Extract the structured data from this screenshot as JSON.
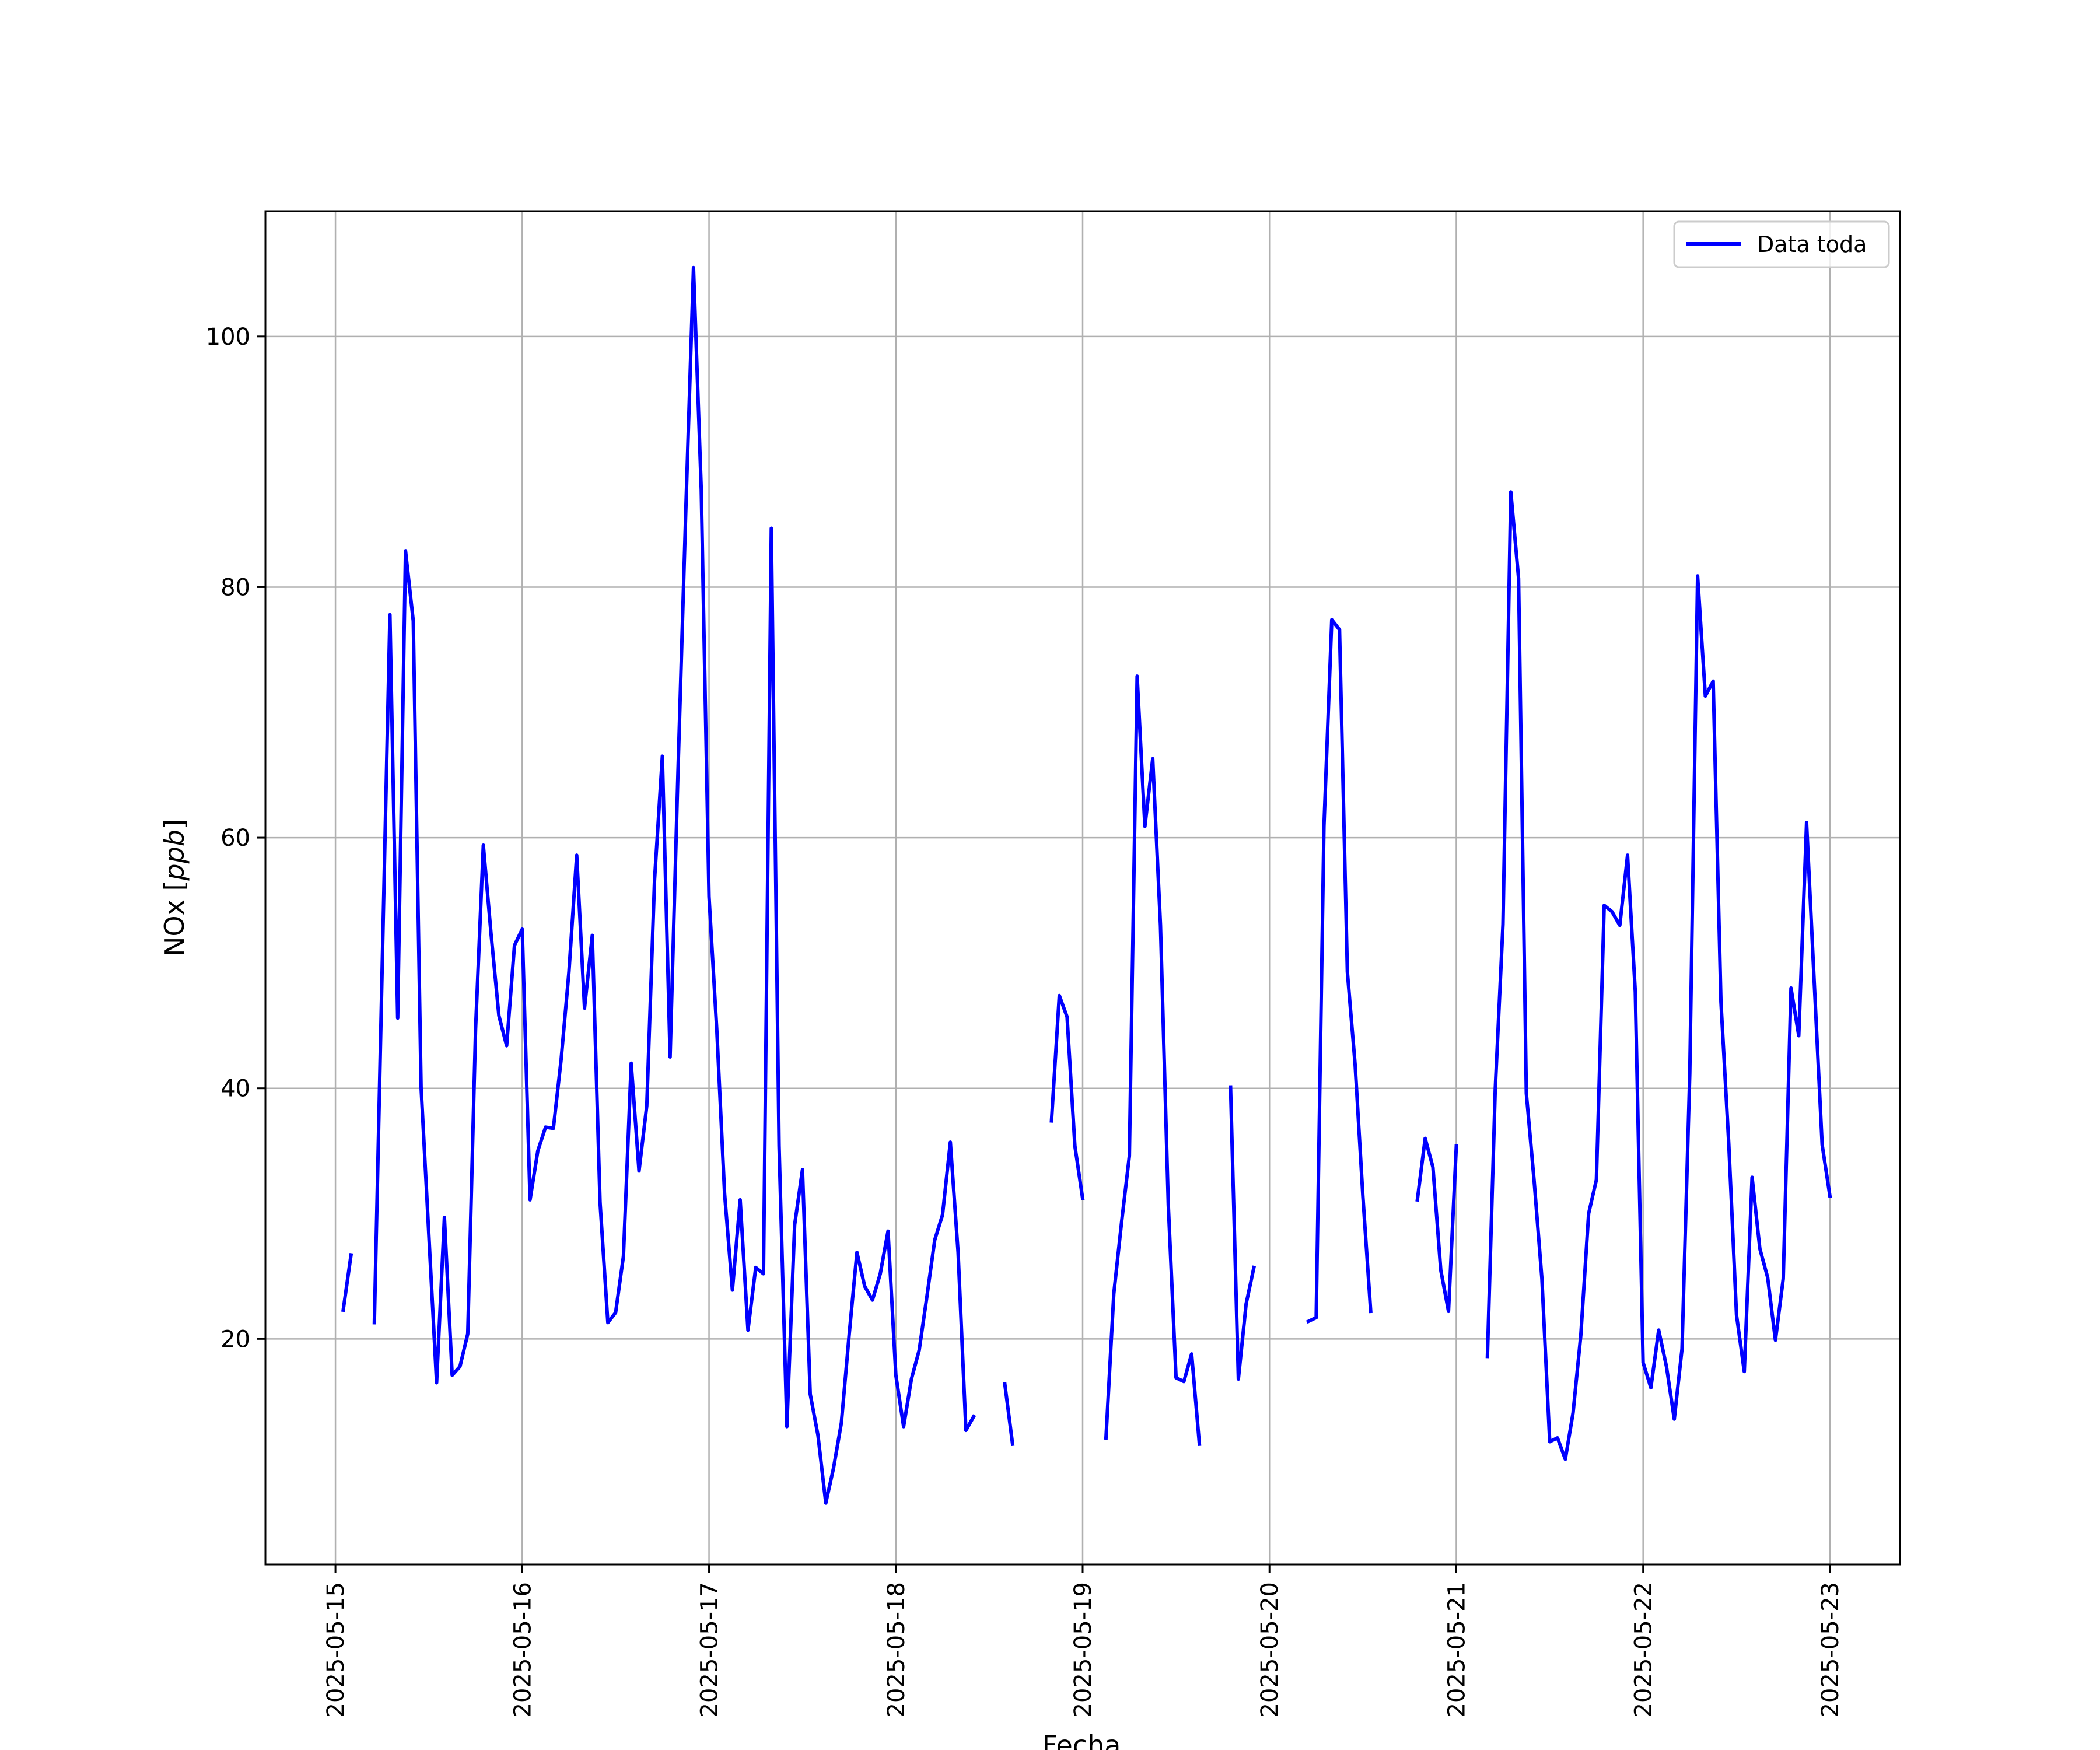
{
  "chart_data": {
    "type": "line",
    "title": "",
    "xlabel": "Fecha",
    "ylabel": "NOx [ppb]",
    "ylabel_parts": {
      "base": "NOx ",
      "unit": "ppb"
    },
    "xlim": [
      "2025-05-14 15:00",
      "2025-05-23 09:00"
    ],
    "ylim": [
      2,
      110
    ],
    "x_ticks": [
      "2025-05-15",
      "2025-05-16",
      "2025-05-17",
      "2025-05-18",
      "2025-05-19",
      "2025-05-20",
      "2025-05-21",
      "2025-05-22",
      "2025-05-23"
    ],
    "y_ticks": [
      20,
      40,
      60,
      80,
      100
    ],
    "grid": true,
    "legend_position": "top-right",
    "series": [
      {
        "name": "Data toda",
        "color": "#0000ff",
        "segments": [
          [
            [
              "2025-05-15 01:00",
              22.3
            ],
            [
              "2025-05-15 02:00",
              26.7
            ]
          ],
          [
            [
              "2025-05-15 05:00",
              21.3
            ],
            [
              "2025-05-15 07:00",
              77.8
            ],
            [
              "2025-05-15 08:00",
              45.6
            ],
            [
              "2025-05-15 09:00",
              82.9
            ],
            [
              "2025-05-15 10:00",
              77.3
            ],
            [
              "2025-05-15 11:00",
              40.1
            ],
            [
              "2025-05-15 13:00",
              16.5
            ],
            [
              "2025-05-15 14:00",
              29.7
            ],
            [
              "2025-05-15 15:00",
              17.1
            ],
            [
              "2025-05-15 16:00",
              17.8
            ],
            [
              "2025-05-15 17:00",
              20.4
            ],
            [
              "2025-05-15 18:00",
              44.7
            ],
            [
              "2025-05-15 19:00",
              59.4
            ],
            [
              "2025-05-15 20:00",
              52.3
            ],
            [
              "2025-05-15 21:00",
              45.8
            ],
            [
              "2025-05-15 22:00",
              43.4
            ],
            [
              "2025-05-15 23:00",
              51.4
            ],
            [
              "2025-05-16 00:00",
              52.7
            ],
            [
              "2025-05-16 01:00",
              31.1
            ],
            [
              "2025-05-16 02:00",
              35.0
            ],
            [
              "2025-05-16 03:00",
              36.9
            ],
            [
              "2025-05-16 04:00",
              36.8
            ],
            [
              "2025-05-16 05:00",
              42.3
            ],
            [
              "2025-05-16 06:00",
              49.3
            ],
            [
              "2025-05-16 07:00",
              58.6
            ],
            [
              "2025-05-16 08:00",
              46.4
            ],
            [
              "2025-05-16 09:00",
              52.2
            ],
            [
              "2025-05-16 10:00",
              30.9
            ],
            [
              "2025-05-16 11:00",
              21.3
            ],
            [
              "2025-05-16 12:00",
              22.1
            ],
            [
              "2025-05-16 13:00",
              26.6
            ],
            [
              "2025-05-16 14:00",
              42.0
            ],
            [
              "2025-05-16 15:00",
              33.4
            ],
            [
              "2025-05-16 16:00",
              38.6
            ],
            [
              "2025-05-16 17:00",
              56.6
            ],
            [
              "2025-05-16 18:00",
              66.5
            ],
            [
              "2025-05-16 19:00",
              42.5
            ],
            [
              "2025-05-16 20:00",
              65.1
            ],
            [
              "2025-05-16 21:00",
              85.8
            ],
            [
              "2025-05-16 22:00",
              105.5
            ],
            [
              "2025-05-16 23:00",
              87.8
            ],
            [
              "2025-05-17 00:00",
              55.3
            ],
            [
              "2025-05-17 01:00",
              44.6
            ],
            [
              "2025-05-17 02:00",
              31.6
            ],
            [
              "2025-05-17 03:00",
              23.9
            ],
            [
              "2025-05-17 04:00",
              31.1
            ],
            [
              "2025-05-17 05:00",
              20.7
            ],
            [
              "2025-05-17 06:00",
              25.7
            ],
            [
              "2025-05-17 07:00",
              25.2
            ],
            [
              "2025-05-17 08:00",
              84.7
            ],
            [
              "2025-05-17 09:00",
              35.4
            ],
            [
              "2025-05-17 10:00",
              13.0
            ],
            [
              "2025-05-17 11:00",
              29.1
            ],
            [
              "2025-05-17 12:00",
              33.5
            ],
            [
              "2025-05-17 13:00",
              15.6
            ],
            [
              "2025-05-17 14:00",
              12.3
            ],
            [
              "2025-05-17 15:00",
              6.9
            ],
            [
              "2025-05-17 16:00",
              9.7
            ],
            [
              "2025-05-17 17:00",
              13.3
            ],
            [
              "2025-05-17 18:00",
              20.3
            ],
            [
              "2025-05-17 19:00",
              26.9
            ],
            [
              "2025-05-17 20:00",
              24.2
            ],
            [
              "2025-05-17 21:00",
              23.1
            ],
            [
              "2025-05-17 22:00",
              25.2
            ],
            [
              "2025-05-17 23:00",
              28.6
            ],
            [
              "2025-05-18 00:00",
              17.1
            ],
            [
              "2025-05-18 01:00",
              13.0
            ],
            [
              "2025-05-18 02:00",
              16.8
            ],
            [
              "2025-05-18 03:00",
              19.1
            ],
            [
              "2025-05-18 04:00",
              23.4
            ],
            [
              "2025-05-18 05:00",
              27.9
            ],
            [
              "2025-05-18 06:00",
              29.9
            ],
            [
              "2025-05-18 07:00",
              35.7
            ],
            [
              "2025-05-18 08:00",
              26.9
            ],
            [
              "2025-05-18 09:00",
              12.7
            ],
            [
              "2025-05-18 10:00",
              13.8
            ]
          ],
          [
            [
              "2025-05-18 14:00",
              16.4
            ],
            [
              "2025-05-18 15:00",
              11.6
            ]
          ],
          [
            [
              "2025-05-18 20:00",
              37.4
            ],
            [
              "2025-05-18 21:00",
              47.4
            ],
            [
              "2025-05-18 22:00",
              45.7
            ],
            [
              "2025-05-18 23:00",
              35.4
            ],
            [
              "2025-05-19 00:00",
              31.2
            ]
          ],
          [
            [
              "2025-05-19 03:00",
              12.1
            ],
            [
              "2025-05-19 04:00",
              23.6
            ],
            [
              "2025-05-19 05:00",
              29.3
            ],
            [
              "2025-05-19 06:00",
              34.6
            ],
            [
              "2025-05-19 07:00",
              72.9
            ],
            [
              "2025-05-19 08:00",
              60.9
            ],
            [
              "2025-05-19 09:00",
              66.3
            ],
            [
              "2025-05-19 10:00",
              53.0
            ],
            [
              "2025-05-19 11:00",
              30.7
            ],
            [
              "2025-05-19 12:00",
              16.9
            ],
            [
              "2025-05-19 13:00",
              16.6
            ],
            [
              "2025-05-19 14:00",
              18.8
            ],
            [
              "2025-05-19 15:00",
              11.6
            ]
          ],
          [
            [
              "2025-05-19 19:00",
              40.1
            ],
            [
              "2025-05-19 20:00",
              16.8
            ],
            [
              "2025-05-19 21:00",
              22.8
            ],
            [
              "2025-05-19 22:00",
              25.7
            ]
          ],
          [
            [
              "2025-05-20 05:00",
              21.4
            ],
            [
              "2025-05-20 06:00",
              21.7
            ],
            [
              "2025-05-20 07:00",
              60.9
            ],
            [
              "2025-05-20 08:00",
              77.4
            ],
            [
              "2025-05-20 09:00",
              76.6
            ],
            [
              "2025-05-20 10:00",
              49.3
            ],
            [
              "2025-05-20 11:00",
              41.9
            ],
            [
              "2025-05-20 12:00",
              31.4
            ],
            [
              "2025-05-20 13:00",
              22.2
            ]
          ],
          [
            [
              "2025-05-20 19:00",
              31.1
            ],
            [
              "2025-05-20 20:00",
              36.0
            ],
            [
              "2025-05-20 21:00",
              33.7
            ],
            [
              "2025-05-20 22:00",
              25.5
            ],
            [
              "2025-05-20 23:00",
              22.2
            ],
            [
              "2025-05-21 00:00",
              35.4
            ]
          ],
          [
            [
              "2025-05-21 04:00",
              18.6
            ],
            [
              "2025-05-21 05:00",
              39.9
            ],
            [
              "2025-05-21 06:00",
              53.1
            ],
            [
              "2025-05-21 07:00",
              87.6
            ],
            [
              "2025-05-21 08:00",
              80.7
            ],
            [
              "2025-05-21 09:00",
              39.6
            ],
            [
              "2025-05-21 10:00",
              32.6
            ],
            [
              "2025-05-21 11:00",
              24.8
            ],
            [
              "2025-05-21 12:00",
              11.8
            ],
            [
              "2025-05-21 13:00",
              12.1
            ],
            [
              "2025-05-21 14:00",
              10.4
            ],
            [
              "2025-05-21 15:00",
              14.1
            ],
            [
              "2025-05-21 16:00",
              20.3
            ],
            [
              "2025-05-21 17:00",
              30.0
            ],
            [
              "2025-05-21 18:00",
              32.7
            ],
            [
              "2025-05-21 19:00",
              54.6
            ],
            [
              "2025-05-21 20:00",
              54.1
            ],
            [
              "2025-05-21 21:00",
              53.0
            ],
            [
              "2025-05-21 22:00",
              58.6
            ],
            [
              "2025-05-21 23:00",
              47.7
            ],
            [
              "2025-05-22 00:00",
              18.1
            ],
            [
              "2025-05-22 01:00",
              16.1
            ],
            [
              "2025-05-22 02:00",
              20.7
            ],
            [
              "2025-05-22 03:00",
              17.8
            ],
            [
              "2025-05-22 04:00",
              13.6
            ],
            [
              "2025-05-22 05:00",
              19.2
            ],
            [
              "2025-05-22 06:00",
              41.2
            ],
            [
              "2025-05-22 07:00",
              80.9
            ],
            [
              "2025-05-22 08:00",
              71.3
            ],
            [
              "2025-05-22 09:00",
              72.5
            ],
            [
              "2025-05-22 10:00",
              46.9
            ],
            [
              "2025-05-22 11:00",
              35.6
            ],
            [
              "2025-05-22 12:00",
              21.9
            ],
            [
              "2025-05-22 13:00",
              17.4
            ],
            [
              "2025-05-22 14:00",
              32.9
            ],
            [
              "2025-05-22 15:00",
              27.2
            ],
            [
              "2025-05-22 16:00",
              24.9
            ],
            [
              "2025-05-22 17:00",
              19.9
            ],
            [
              "2025-05-22 18:00",
              24.8
            ],
            [
              "2025-05-22 19:00",
              48.0
            ],
            [
              "2025-05-22 20:00",
              44.2
            ],
            [
              "2025-05-22 21:00",
              61.2
            ],
            [
              "2025-05-22 22:00",
              48.3
            ],
            [
              "2025-05-22 23:00",
              35.5
            ],
            [
              "2025-05-23 00:00",
              31.4
            ]
          ]
        ]
      }
    ]
  }
}
